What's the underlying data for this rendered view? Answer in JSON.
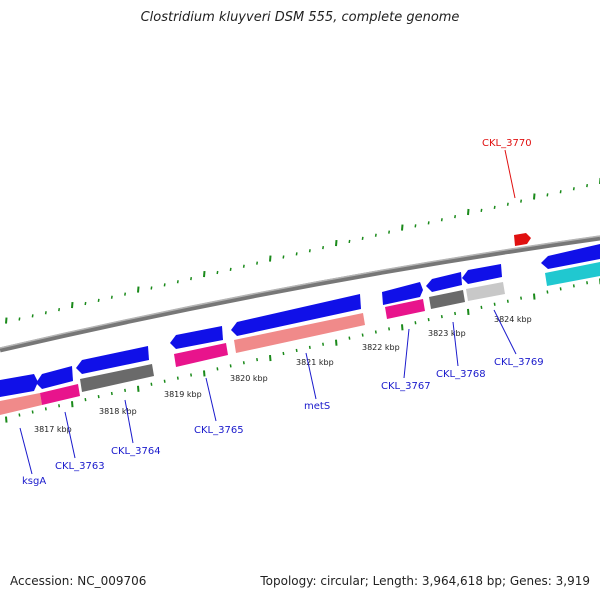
{
  "title": "Clostridium kluyveri DSM 555, complete genome",
  "footer": {
    "accession": "Accession: NC_009706",
    "stats": "Topology: circular; Length: 3,964,618 bp; Genes: 3,919"
  },
  "colors": {
    "backbone": "#8a8a8a",
    "forward_cds": "#1010e8",
    "gene_label": "#1a1acc",
    "red_feature": "#e01010",
    "tick": "#1a8a1a",
    "rna_pink": "#e8148c",
    "rna_salmon": "#f08a8a",
    "rna_dark": "#6a6a6a",
    "rna_light": "#c8c8c8",
    "rna_cyan": "#20c8d0"
  },
  "scale": {
    "unit": "kbp",
    "ticks": [
      "3817 kbp",
      "3818 kbp",
      "3819 kbp",
      "3820 kbp",
      "3821 kbp",
      "3822 kbp",
      "3823 kbp",
      "3824 kbp"
    ]
  },
  "genes": [
    {
      "id": "ksgA",
      "color": "blue"
    },
    {
      "id": "CKL_3763",
      "color": "blue"
    },
    {
      "id": "CKL_3764",
      "color": "blue"
    },
    {
      "id": "CKL_3765",
      "color": "blue"
    },
    {
      "id": "metS",
      "color": "blue"
    },
    {
      "id": "CKL_3767",
      "color": "blue"
    },
    {
      "id": "CKL_3768",
      "color": "blue"
    },
    {
      "id": "CKL_3769",
      "color": "blue"
    },
    {
      "id": "CKL_3770",
      "color": "red"
    }
  ]
}
